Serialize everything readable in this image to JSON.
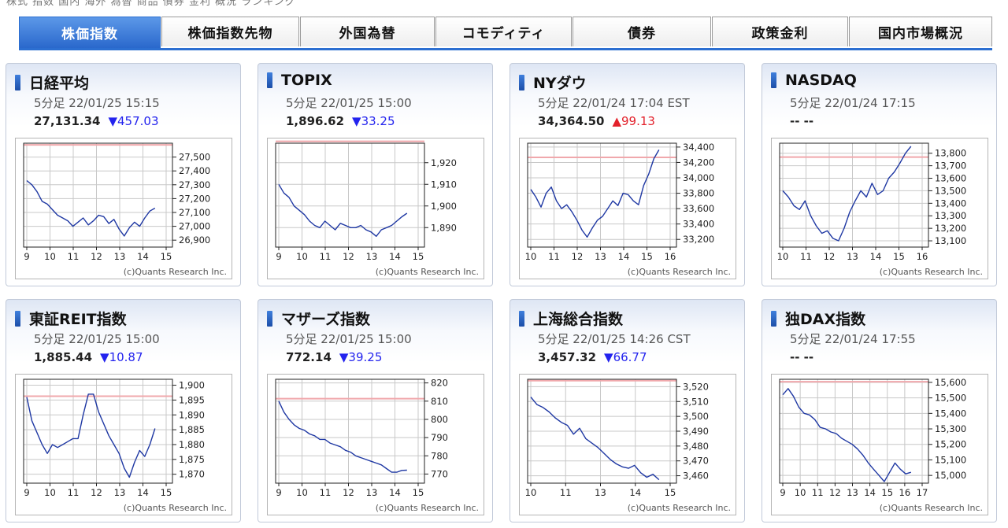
{
  "tabs": [
    {
      "label": "株価指数",
      "active": true
    },
    {
      "label": "株価指数先物",
      "active": false
    },
    {
      "label": "外国為替",
      "active": false
    },
    {
      "label": "コモディティ",
      "active": false
    },
    {
      "label": "債券",
      "active": false
    },
    {
      "label": "政策金利",
      "active": false
    },
    {
      "label": "国内市場概況",
      "active": false
    }
  ],
  "colors": {
    "down": "#2323ee",
    "up": "#e3212b",
    "line": "#1f38a3",
    "ref": "#f0a8ac",
    "accent": "#2c6fd1"
  },
  "panels": [
    {
      "name": "日経平均",
      "date": "5分足 22/01/25 15:15",
      "value": "27,131.34",
      "change": "▼457.03",
      "dir": "down",
      "credit": "(c)Quants Research Inc.",
      "chart_data": {
        "type": "line",
        "x_ticks": [
          "9",
          "10",
          "11",
          "12",
          "13",
          "14",
          "15"
        ],
        "y_ticks": [
          "27,500",
          "27,400",
          "27,300",
          "27,200",
          "27,100",
          "27,000",
          "26,900"
        ],
        "ylim": [
          26850,
          27600
        ],
        "ref": 27588,
        "values": [
          27330,
          27300,
          27250,
          27180,
          27160,
          27120,
          27080,
          27060,
          27040,
          27000,
          27030,
          27060,
          27010,
          27040,
          27080,
          27070,
          27020,
          27050,
          26980,
          26930,
          26990,
          27030,
          27000,
          27060,
          27110,
          27131.34
        ]
      }
    },
    {
      "name": "TOPIX",
      "date": "5分足 22/01/25 15:00",
      "value": "1,896.62",
      "change": "▼33.25",
      "dir": "down",
      "credit": "(c)Quants Research Inc.",
      "chart_data": {
        "type": "line",
        "x_ticks": [
          "9",
          "10",
          "11",
          "12",
          "13",
          "14",
          "15"
        ],
        "y_ticks": [
          "1,920",
          "1,910",
          "1,900",
          "1,890"
        ],
        "ylim": [
          1881,
          1929
        ],
        "ref": 1929.87,
        "values": [
          1910,
          1906,
          1904,
          1900,
          1898,
          1896,
          1893,
          1891,
          1890,
          1893,
          1891,
          1889,
          1892,
          1891,
          1890,
          1890,
          1891,
          1889,
          1888,
          1886,
          1889,
          1890,
          1891,
          1893,
          1895,
          1896.62
        ]
      }
    },
    {
      "name": "NYダウ",
      "date": "5分足 22/01/24 17:04 EST",
      "value": "34,364.50",
      "change": "▲99.13",
      "dir": "up",
      "credit": "(c)Quants Research Inc.",
      "chart_data": {
        "type": "line",
        "x_ticks": [
          "10",
          "11",
          "12",
          "13",
          "14",
          "15",
          "16"
        ],
        "y_ticks": [
          "34,400",
          "34,200",
          "34,000",
          "33,800",
          "33,600",
          "33,400",
          "33,200"
        ],
        "ylim": [
          33100,
          34450
        ],
        "ref": 34265.37,
        "values": [
          33850,
          33750,
          33620,
          33800,
          33880,
          33700,
          33600,
          33650,
          33560,
          33450,
          33320,
          33230,
          33350,
          33450,
          33500,
          33600,
          33700,
          33640,
          33800,
          33780,
          33700,
          33650,
          33900,
          34050,
          34250,
          34364.5
        ]
      }
    },
    {
      "name": "NASDAQ",
      "date": "5分足 22/01/24 17:15",
      "value": "-- --",
      "change": "",
      "dir": "none",
      "credit": "(c)Quants Research Inc.",
      "chart_data": {
        "type": "line",
        "x_ticks": [
          "10",
          "11",
          "12",
          "13",
          "14",
          "15",
          "16"
        ],
        "y_ticks": [
          "13,800",
          "13,700",
          "13,600",
          "13,500",
          "13,400",
          "13,300",
          "13,200",
          "13,100"
        ],
        "ylim": [
          13050,
          13880
        ],
        "ref": 13768.92,
        "values": [
          13500,
          13450,
          13380,
          13350,
          13420,
          13300,
          13220,
          13160,
          13180,
          13120,
          13100,
          13200,
          13330,
          13420,
          13500,
          13450,
          13560,
          13470,
          13500,
          13600,
          13650,
          13720,
          13800,
          13855
        ]
      }
    },
    {
      "name": "東証REIT指数",
      "date": "5分足 22/01/25 15:00",
      "value": "1,885.44",
      "change": "▼10.87",
      "dir": "down",
      "credit": "(c)Quants Research Inc.",
      "chart_data": {
        "type": "line",
        "x_ticks": [
          "9",
          "10",
          "11",
          "12",
          "13",
          "14",
          "15"
        ],
        "y_ticks": [
          "1,900",
          "1,895",
          "1,890",
          "1,885",
          "1,880",
          "1,875",
          "1,870"
        ],
        "ylim": [
          1867,
          1902
        ],
        "ref": 1896.31,
        "values": [
          1896,
          1888,
          1884,
          1880,
          1877,
          1880,
          1879,
          1880,
          1881,
          1882,
          1882,
          1890,
          1897,
          1897,
          1891,
          1887,
          1883,
          1880,
          1877,
          1872,
          1869,
          1874,
          1878,
          1876,
          1880,
          1885.44
        ]
      }
    },
    {
      "name": "マザーズ指数",
      "date": "5分足 22/01/25 15:00",
      "value": "772.14",
      "change": "▼39.25",
      "dir": "down",
      "credit": "(c)Quants Research Inc.",
      "chart_data": {
        "type": "line",
        "x_ticks": [
          "9",
          "10",
          "11",
          "12",
          "13",
          "14",
          "15"
        ],
        "y_ticks": [
          "820",
          "810",
          "800",
          "790",
          "780",
          "770"
        ],
        "ylim": [
          765,
          822
        ],
        "ref": 811.39,
        "values": [
          810,
          804,
          800,
          797,
          795,
          794,
          792,
          791,
          789,
          789,
          787,
          786,
          785,
          783,
          782,
          780,
          779,
          778,
          777,
          776,
          775,
          773,
          771,
          771,
          772,
          772.14
        ]
      }
    },
    {
      "name": "上海総合指数",
      "date": "5分足 22/01/25 14:26 CST",
      "value": "3,457.32",
      "change": "▼66.77",
      "dir": "down",
      "credit": "(c)Quants Research Inc.",
      "chart_data": {
        "type": "line",
        "x_ticks": [
          "10",
          "11",
          "13",
          "14",
          "15"
        ],
        "y_ticks": [
          "3,520",
          "3,510",
          "3,500",
          "3,490",
          "3,480",
          "3,470",
          "3,460"
        ],
        "ylim": [
          3455,
          3525
        ],
        "ref": 3524.09,
        "values": [
          3513,
          3508,
          3506,
          3503,
          3499,
          3496,
          3494,
          3488,
          3492,
          3485,
          3482,
          3479,
          3475,
          3471,
          3468,
          3466,
          3465,
          3467,
          3462,
          3459,
          3461,
          3457.32
        ]
      }
    },
    {
      "name": "独DAX指数",
      "date": "5分足 22/01/24 17:55",
      "value": "-- --",
      "change": "",
      "dir": "none",
      "credit": "(c)Quants Research Inc.",
      "chart_data": {
        "type": "line",
        "x_ticks": [
          "9",
          "10",
          "11",
          "12",
          "13",
          "14",
          "15",
          "16",
          "17"
        ],
        "y_ticks": [
          "15,600",
          "15,500",
          "15,400",
          "15,300",
          "15,200",
          "15,100",
          "15,000"
        ],
        "ylim": [
          14950,
          15620
        ],
        "ref": 15603.88,
        "values": [
          15520,
          15560,
          15510,
          15440,
          15400,
          15390,
          15360,
          15310,
          15300,
          15280,
          15270,
          15240,
          15220,
          15200,
          15170,
          15130,
          15080,
          15040,
          15000,
          14960,
          15020,
          15080,
          15040,
          15010,
          15020
        ]
      }
    }
  ]
}
